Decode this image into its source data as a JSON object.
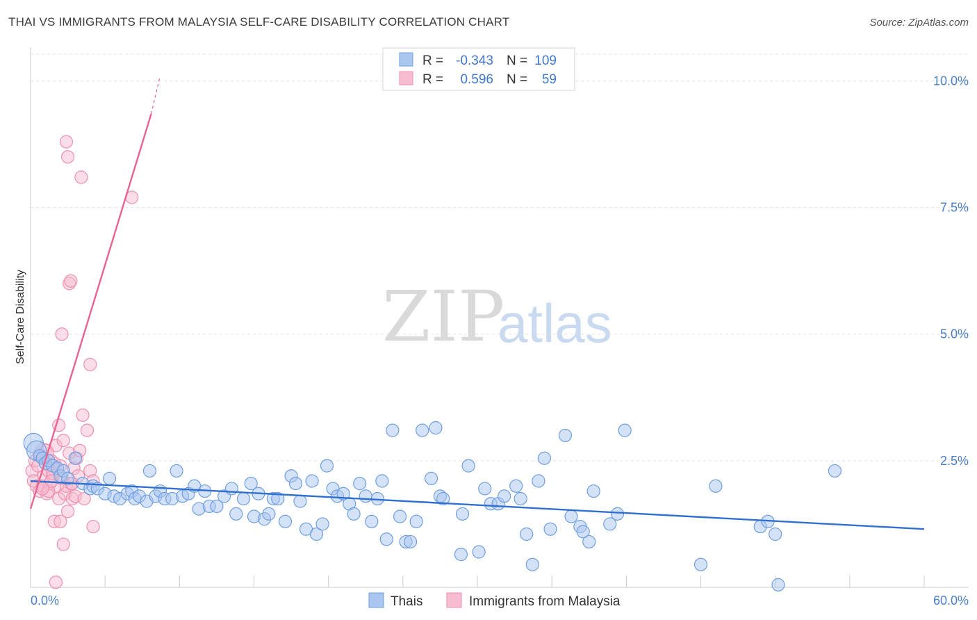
{
  "title": "THAI VS IMMIGRANTS FROM MALAYSIA SELF-CARE DISABILITY CORRELATION CHART",
  "source": "Source: ZipAtlas.com",
  "watermark": {
    "zip": "ZIP",
    "atlas": "atlas"
  },
  "colors": {
    "blue_fill": "#a9c6ef",
    "blue_stroke": "#6e9ee0",
    "blue_line": "#2f6fcf",
    "pink_fill": "#f6bcd0",
    "pink_stroke": "#ee8fb0",
    "pink_line": "#e8638f",
    "axis_text": "#4a7fc9",
    "grid": "#e0e0e0"
  },
  "legend_top": {
    "rows": [
      {
        "r_label": "R =",
        "r_value": "-0.343",
        "n_label": "N =",
        "n_value": "109",
        "color": "blue"
      },
      {
        "r_label": "R =",
        "r_value": "0.596",
        "n_label": "N =",
        "n_value": "59",
        "color": "pink"
      }
    ]
  },
  "legend_bottom": [
    {
      "label": "Thais",
      "color": "blue"
    },
    {
      "label": "Immigrants from Malaysia",
      "color": "pink"
    }
  ],
  "chart_data": {
    "type": "scatter",
    "title": "THAI VS IMMIGRANTS FROM MALAYSIA SELF-CARE DISABILITY CORRELATION CHART",
    "xlabel": "",
    "ylabel": "Self-Care Disability",
    "xlim": [
      0,
      60
    ],
    "ylim": [
      0,
      10.5
    ],
    "x_tick_labels": [
      "0.0%",
      "60.0%"
    ],
    "y_ticks": [
      2.5,
      5.0,
      7.5,
      10.0
    ],
    "y_tick_labels": [
      "2.5%",
      "5.0%",
      "7.5%",
      "10.0%"
    ],
    "grid": "horizontal-dashed",
    "legend_position": "top-center",
    "series": [
      {
        "name": "Thais",
        "color": "blue",
        "trend": {
          "x": [
            0,
            60
          ],
          "y": [
            2.1,
            1.15
          ]
        },
        "points": [
          [
            0.2,
            2.85
          ],
          [
            0.4,
            2.7
          ],
          [
            0.6,
            2.6
          ],
          [
            0.8,
            2.55
          ],
          [
            1.0,
            2.45
          ],
          [
            1.2,
            2.5
          ],
          [
            1.5,
            2.4
          ],
          [
            1.8,
            2.35
          ],
          [
            2.0,
            2.2
          ],
          [
            2.2,
            2.3
          ],
          [
            2.5,
            2.15
          ],
          [
            3.0,
            2.55
          ],
          [
            3.5,
            2.05
          ],
          [
            4.0,
            1.95
          ],
          [
            4.2,
            2.0
          ],
          [
            4.5,
            1.95
          ],
          [
            5.0,
            1.85
          ],
          [
            5.3,
            2.15
          ],
          [
            5.6,
            1.8
          ],
          [
            6.0,
            1.75
          ],
          [
            6.5,
            1.85
          ],
          [
            6.8,
            1.9
          ],
          [
            7.0,
            1.75
          ],
          [
            7.3,
            1.8
          ],
          [
            7.8,
            1.7
          ],
          [
            8.0,
            2.3
          ],
          [
            8.4,
            1.8
          ],
          [
            8.7,
            1.9
          ],
          [
            9.0,
            1.75
          ],
          [
            9.5,
            1.75
          ],
          [
            9.8,
            2.3
          ],
          [
            10.2,
            1.8
          ],
          [
            10.6,
            1.85
          ],
          [
            11.0,
            2.0
          ],
          [
            11.3,
            1.55
          ],
          [
            11.7,
            1.9
          ],
          [
            12.0,
            1.6
          ],
          [
            12.5,
            1.6
          ],
          [
            13.0,
            1.8
          ],
          [
            13.5,
            1.95
          ],
          [
            13.8,
            1.45
          ],
          [
            14.3,
            1.75
          ],
          [
            14.8,
            2.05
          ],
          [
            15.0,
            1.4
          ],
          [
            15.3,
            1.85
          ],
          [
            15.7,
            1.35
          ],
          [
            16.0,
            1.45
          ],
          [
            16.3,
            1.75
          ],
          [
            16.6,
            1.75
          ],
          [
            17.1,
            1.3
          ],
          [
            17.5,
            2.2
          ],
          [
            17.8,
            2.05
          ],
          [
            18.1,
            1.7
          ],
          [
            18.5,
            1.15
          ],
          [
            18.9,
            2.1
          ],
          [
            19.2,
            1.05
          ],
          [
            19.6,
            1.25
          ],
          [
            19.9,
            2.4
          ],
          [
            20.3,
            1.95
          ],
          [
            20.6,
            1.8
          ],
          [
            21.0,
            1.85
          ],
          [
            21.4,
            1.65
          ],
          [
            21.7,
            1.45
          ],
          [
            22.1,
            2.05
          ],
          [
            22.5,
            1.8
          ],
          [
            22.9,
            1.3
          ],
          [
            23.3,
            1.75
          ],
          [
            23.6,
            2.1
          ],
          [
            23.9,
            0.95
          ],
          [
            24.3,
            3.1
          ],
          [
            24.8,
            1.4
          ],
          [
            25.2,
            0.9
          ],
          [
            25.5,
            0.9
          ],
          [
            25.9,
            1.3
          ],
          [
            26.3,
            3.1
          ],
          [
            26.9,
            2.15
          ],
          [
            27.2,
            3.15
          ],
          [
            27.5,
            1.8
          ],
          [
            27.7,
            1.75
          ],
          [
            28.9,
            0.65
          ],
          [
            29.0,
            1.45
          ],
          [
            29.4,
            2.4
          ],
          [
            30.1,
            0.7
          ],
          [
            30.5,
            1.95
          ],
          [
            30.9,
            1.65
          ],
          [
            31.4,
            1.65
          ],
          [
            31.8,
            1.8
          ],
          [
            32.6,
            2.0
          ],
          [
            32.9,
            1.75
          ],
          [
            33.3,
            1.05
          ],
          [
            33.7,
            0.45
          ],
          [
            34.1,
            2.1
          ],
          [
            34.5,
            2.55
          ],
          [
            34.9,
            1.15
          ],
          [
            35.9,
            3.0
          ],
          [
            36.3,
            1.4
          ],
          [
            36.9,
            1.2
          ],
          [
            37.1,
            1.1
          ],
          [
            37.5,
            0.9
          ],
          [
            37.8,
            1.9
          ],
          [
            38.9,
            1.25
          ],
          [
            39.4,
            1.45
          ],
          [
            39.9,
            3.1
          ],
          [
            45.0,
            0.45
          ],
          [
            46.0,
            2.0
          ],
          [
            49.0,
            1.2
          ],
          [
            49.5,
            1.3
          ],
          [
            50.0,
            1.05
          ],
          [
            50.2,
            0.05
          ],
          [
            54.0,
            2.3
          ]
        ]
      },
      {
        "name": "Immigrants from Malaysia",
        "color": "pink",
        "trend": {
          "x": [
            0,
            8.1
          ],
          "y": [
            1.55,
            9.35
          ],
          "dashed_extension": {
            "x": [
              8.1,
              8.7
            ],
            "y": [
              9.35,
              10.1
            ]
          }
        },
        "points": [
          [
            0.1,
            2.3
          ],
          [
            0.2,
            2.1
          ],
          [
            0.3,
            2.5
          ],
          [
            0.4,
            2.0
          ],
          [
            0.5,
            2.4
          ],
          [
            0.6,
            1.9
          ],
          [
            0.7,
            2.6
          ],
          [
            0.8,
            2.0
          ],
          [
            0.9,
            2.2
          ],
          [
            1.0,
            2.7
          ],
          [
            1.1,
            1.85
          ],
          [
            1.2,
            2.3
          ],
          [
            1.3,
            2.05
          ],
          [
            1.4,
            2.5
          ],
          [
            1.5,
            2.2
          ],
          [
            1.6,
            1.3
          ],
          [
            1.7,
            2.8
          ],
          [
            1.8,
            2.0
          ],
          [
            1.9,
            1.75
          ],
          [
            2.0,
            2.4
          ],
          [
            2.1,
            2.15
          ],
          [
            2.2,
            2.9
          ],
          [
            2.3,
            1.85
          ],
          [
            2.4,
            2.0
          ],
          [
            2.5,
            1.5
          ],
          [
            2.6,
            2.65
          ],
          [
            2.7,
            2.05
          ],
          [
            2.8,
            1.75
          ],
          [
            2.9,
            2.35
          ],
          [
            3.0,
            1.8
          ],
          [
            3.1,
            2.55
          ],
          [
            3.2,
            2.2
          ],
          [
            3.3,
            2.7
          ],
          [
            3.5,
            3.4
          ],
          [
            3.6,
            1.75
          ],
          [
            3.8,
            3.1
          ],
          [
            4.0,
            2.3
          ],
          [
            4.2,
            2.1
          ],
          [
            2.1,
            5.0
          ],
          [
            2.4,
            8.8
          ],
          [
            2.5,
            8.5
          ],
          [
            3.4,
            8.1
          ],
          [
            6.8,
            7.7
          ],
          [
            2.6,
            6.0
          ],
          [
            2.7,
            6.05
          ],
          [
            4.0,
            4.4
          ],
          [
            4.2,
            1.2
          ],
          [
            1.7,
            0.1
          ],
          [
            1.6,
            2.45
          ],
          [
            1.5,
            2.25
          ],
          [
            1.2,
            1.9
          ],
          [
            1.0,
            2.45
          ],
          [
            0.8,
            1.95
          ],
          [
            0.9,
            2.65
          ],
          [
            1.4,
            2.1
          ],
          [
            2.0,
            1.3
          ],
          [
            2.2,
            0.85
          ],
          [
            1.9,
            3.2
          ],
          [
            2.8,
            2.05
          ]
        ]
      }
    ]
  }
}
